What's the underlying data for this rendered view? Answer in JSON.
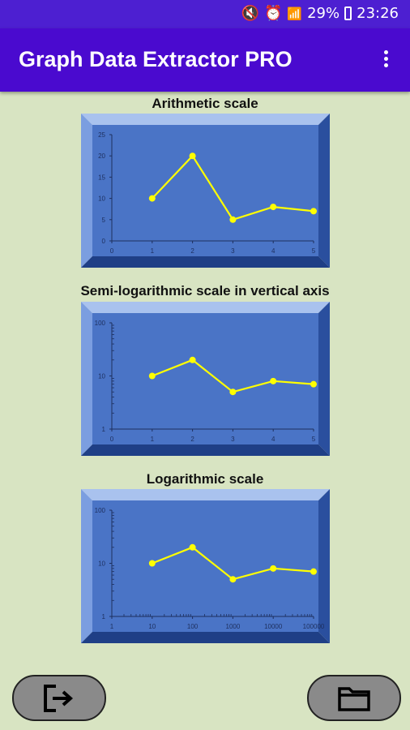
{
  "status_bar": {
    "battery": "29%",
    "time": "23:26",
    "icons": [
      "mute-icon",
      "alarm-icon",
      "wifi-icon",
      "signal-icon",
      "battery-icon"
    ]
  },
  "app_bar": {
    "title": "Graph Data Extractor PRO",
    "menu_icon": "overflow-menu-icon"
  },
  "charts_titles": {
    "arithmetic": "Arithmetic scale",
    "semilog": "Semi-logarithmic scale in vertical axis",
    "log": "Logarithmic scale"
  },
  "chart_data": [
    {
      "type": "line",
      "title": "Arithmetic scale",
      "x": [
        1,
        2,
        3,
        4,
        5
      ],
      "y": [
        10,
        20,
        5,
        8,
        7
      ],
      "xlim": [
        0,
        5
      ],
      "ylim": [
        0,
        25
      ],
      "x_ticks": [
        0,
        1,
        2,
        3,
        4,
        5
      ],
      "y_ticks": [
        0,
        5,
        10,
        15,
        20,
        25
      ],
      "x_scale": "linear",
      "y_scale": "linear",
      "line_color": "#ffff00",
      "plot_background": "#4a74c6"
    },
    {
      "type": "line",
      "title": "Semi-logarithmic scale in vertical axis",
      "x": [
        1,
        2,
        3,
        4,
        5
      ],
      "y": [
        10,
        20,
        5,
        8,
        7
      ],
      "xlim": [
        0,
        5
      ],
      "ylim": [
        1,
        100
      ],
      "x_ticks": [
        0,
        1,
        2,
        3,
        4,
        5
      ],
      "y_ticks": [
        1,
        10,
        100
      ],
      "x_scale": "linear",
      "y_scale": "log",
      "line_color": "#ffff00",
      "plot_background": "#4a74c6"
    },
    {
      "type": "line",
      "title": "Logarithmic scale",
      "x": [
        10,
        100,
        1000,
        10000,
        100000
      ],
      "y": [
        10,
        20,
        5,
        8,
        7
      ],
      "xlim": [
        1,
        100000
      ],
      "ylim": [
        1,
        100
      ],
      "x_ticks": [
        1,
        10,
        100,
        1000,
        10000,
        100000
      ],
      "y_ticks": [
        1,
        10,
        100
      ],
      "x_scale": "log",
      "y_scale": "log",
      "line_color": "#ffff00",
      "plot_background": "#4a74c6"
    }
  ],
  "bottom_bar": {
    "exit_icon": "exit-icon",
    "folder_icon": "folder-icon"
  }
}
